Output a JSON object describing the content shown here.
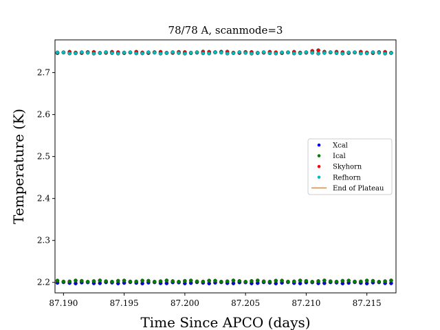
{
  "chart_data": {
    "type": "scatter",
    "title": "78/78 A, scanmode=3",
    "xlabel": "Time Since APCO (days)",
    "ylabel": "Temperature (K)",
    "xlim": [
      87.1893,
      87.2174
    ],
    "ylim": [
      2.175,
      2.778
    ],
    "xticks": [
      "87.190",
      "87.195",
      "87.200",
      "87.205",
      "87.210",
      "87.215"
    ],
    "xtick_values": [
      87.19,
      87.195,
      87.2,
      87.205,
      87.21,
      87.215
    ],
    "yticks": [
      "2.2",
      "2.3",
      "2.4",
      "2.5",
      "2.6",
      "2.7"
    ],
    "ytick_values": [
      2.2,
      2.3,
      2.4,
      2.5,
      2.6,
      2.7
    ],
    "grid": false,
    "legend_position": "center-right",
    "x_start": 87.1895,
    "x_step": 0.0005,
    "n_points": 56,
    "series": [
      {
        "name": "Xcal",
        "color": "#0000ff",
        "marker": "dot",
        "base": 2.199,
        "jitter": 0.0015
      },
      {
        "name": "Ical",
        "color": "#008000",
        "marker": "dot",
        "base": 2.203,
        "jitter": 0.0015
      },
      {
        "name": "Skyhorn",
        "color": "#ff0000",
        "marker": "dot",
        "base": 2.748,
        "jitter": 0.0015,
        "bumps": [
          [
            87.2025,
            0.002
          ],
          [
            87.211,
            0.004
          ]
        ]
      },
      {
        "name": "Refhorn",
        "color": "#00bfbf",
        "marker": "dot",
        "base": 2.747,
        "jitter": 0.0015
      }
    ],
    "extra_legend": [
      {
        "name": "End of Plateau",
        "color": "#ff7f0e",
        "marker": "line"
      }
    ]
  }
}
